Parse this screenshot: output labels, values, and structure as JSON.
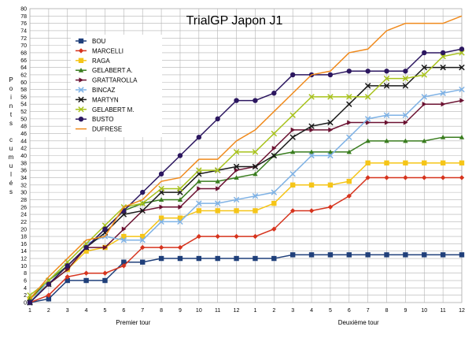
{
  "chart_data": {
    "type": "line",
    "title": "TrialGP Japon J1",
    "ylabel": "Points cumulés",
    "xgroups": [
      "Premier tour",
      "Deuxième tour"
    ],
    "categories": [
      "1",
      "2",
      "3",
      "4",
      "5",
      "6",
      "7",
      "8",
      "9",
      "10",
      "11",
      "12",
      "1",
      "2",
      "3",
      "4",
      "5",
      "6",
      "7",
      "8",
      "9",
      "10",
      "11",
      "12"
    ],
    "ylim": [
      0,
      80
    ],
    "ytick_step": 2,
    "grid": true,
    "legend_position": "top-left",
    "series": [
      {
        "name": "BOU",
        "color": "#1f3f7a",
        "marker": "square",
        "values": [
          0,
          1,
          6,
          6,
          6,
          11,
          11,
          12,
          12,
          12,
          12,
          12,
          12,
          12,
          13,
          13,
          13,
          13,
          13,
          13,
          13,
          13,
          13,
          13
        ]
      },
      {
        "name": "MARCELLI",
        "color": "#d6341e",
        "marker": "diamond",
        "values": [
          0,
          2,
          7,
          8,
          8,
          10,
          15,
          15,
          15,
          18,
          18,
          18,
          18,
          20,
          25,
          25,
          26,
          29,
          34,
          34,
          34,
          34,
          34,
          34
        ]
      },
      {
        "name": "RAGA",
        "color": "#f5c518",
        "marker": "square",
        "values": [
          1,
          5,
          9,
          14,
          15,
          18,
          18,
          23,
          23,
          25,
          25,
          25,
          25,
          27,
          32,
          32,
          32,
          33,
          38,
          38,
          38,
          38,
          38,
          38
        ]
      },
      {
        "name": "GELABERT A.",
        "color": "#3a7d1f",
        "marker": "triangle",
        "values": [
          1,
          6,
          10,
          15,
          20,
          25,
          27,
          28,
          28,
          33,
          33,
          34,
          35,
          40,
          41,
          41,
          41,
          41,
          44,
          44,
          44,
          44,
          45,
          45
        ]
      },
      {
        "name": "GRATTAROLLA",
        "color": "#6b1131",
        "marker": "triangle-right",
        "values": [
          0,
          5,
          9,
          15,
          15,
          20,
          25,
          26,
          26,
          31,
          31,
          36,
          37,
          42,
          47,
          47,
          47,
          49,
          49,
          49,
          49,
          54,
          54,
          55
        ]
      },
      {
        "name": "BINCAZ",
        "color": "#7fb2e5",
        "marker": "x",
        "values": [
          0,
          6,
          11,
          16,
          18,
          17,
          17,
          22,
          22,
          27,
          27,
          28,
          29,
          30,
          35,
          40,
          40,
          45,
          50,
          51,
          51,
          56,
          57,
          58
        ]
      },
      {
        "name": "MARTYN",
        "color": "#1a1a1a",
        "marker": "x",
        "values": [
          0,
          5,
          10,
          15,
          19,
          24,
          25,
          30,
          30,
          35,
          36,
          37,
          37,
          40,
          45,
          48,
          49,
          54,
          59,
          59,
          59,
          64,
          64,
          64
        ]
      },
      {
        "name": "GELABERT M.",
        "color": "#a8c21c",
        "marker": "x",
        "values": [
          2,
          6,
          11,
          16,
          21,
          26,
          27,
          31,
          31,
          36,
          36,
          41,
          41,
          46,
          51,
          56,
          56,
          56,
          56,
          61,
          61,
          62,
          67,
          68
        ]
      },
      {
        "name": "BUSTO",
        "color": "#2c1760",
        "marker": "circle",
        "values": [
          0,
          5,
          10,
          15,
          20,
          25,
          30,
          35,
          40,
          45,
          50,
          55,
          55,
          57,
          62,
          62,
          62,
          63,
          63,
          63,
          63,
          68,
          68,
          69
        ]
      },
      {
        "name": "DUFRESE",
        "color": "#f08a1c",
        "marker": "none",
        "values": [
          1,
          7,
          12,
          17,
          18,
          26,
          28,
          33,
          34,
          39,
          39,
          44,
          47,
          52,
          57,
          62,
          63,
          68,
          69,
          74,
          76,
          76,
          76,
          78
        ]
      }
    ]
  }
}
